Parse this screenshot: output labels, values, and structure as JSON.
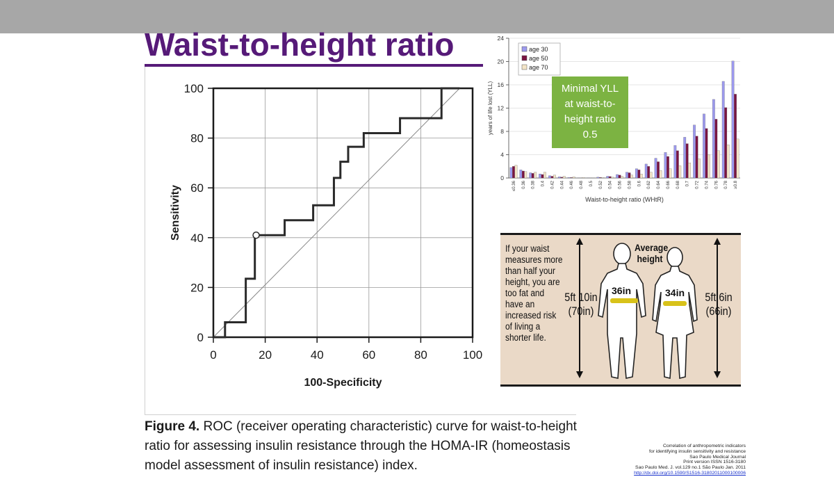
{
  "slide": {
    "title": "Waist-to-height ratio",
    "caption": {
      "label": "Figure 4.",
      "text": " ROC (receiver operating characteristic) curve for waist-to-height ratio for assessing insulin resistance through the HOMA-IR (homeostasis model assessment of insulin resistance) index."
    },
    "citation": {
      "lines": [
        "Correlation of anthropometric indicators",
        "for identifying insulin sensitivity and resistance",
        "Sao Paulo Medical Journal",
        "Print version ISSN 1516-3180",
        "Sao Paulo Med. J. vol.129 no.1 São Paulo Jan. 2011"
      ],
      "link": "http://dx.doi.org/10.1590/S1516-31802011000100006"
    },
    "waist_panel": {
      "text": "If your waist measures more than half your height, you are too fat and have an increased risk of living a shorter life.",
      "average_height": "Average height",
      "man_height": [
        "5ft 10in",
        "(70in)"
      ],
      "woman_height": [
        "5ft 6in",
        "(66in)"
      ],
      "man_waist": "36in",
      "woman_waist": "34in"
    }
  },
  "chart_data": [
    {
      "type": "line",
      "xlabel": "100-Specificity",
      "ylabel": "Sensitivity",
      "xlim": [
        0,
        100
      ],
      "ylim": [
        0,
        100
      ],
      "xticks": [
        "0",
        "20",
        "40",
        "60",
        "80",
        "100"
      ],
      "yticks": [
        "0",
        "20",
        "40",
        "60",
        "80",
        "100"
      ],
      "grid": true,
      "series": [
        {
          "x": [
            0,
            4.5,
            4.5,
            12.5,
            12.5,
            16,
            16,
            16.5,
            16.5,
            27.5,
            27.5,
            38.5,
            38.5,
            46.5,
            46.5,
            49,
            49,
            52,
            52,
            58,
            58,
            72,
            72,
            88,
            88,
            95
          ],
          "y": [
            0,
            0,
            6,
            6,
            23.5,
            23.5,
            41,
            41,
            41,
            41,
            47,
            47,
            53,
            53,
            64,
            64,
            70.5,
            70.5,
            76.5,
            76.5,
            82,
            82,
            88,
            88,
            100,
            100
          ]
        },
        {
          "x": [
            0,
            95
          ],
          "y": [
            0,
            100
          ]
        }
      ],
      "annotations": [
        {
          "x": 16.5,
          "y": 41,
          "marker": "open-circle"
        }
      ]
    },
    {
      "type": "bar",
      "ylabel": "years of life lost (YLL)",
      "xlabel": "Waist-to-height ratio (WHtR)",
      "ylim": [
        0,
        24
      ],
      "yticks": [
        "0",
        "4",
        "8",
        "12",
        "16",
        "20",
        "24"
      ],
      "categories": [
        "≤0.36",
        "0.36",
        "0.38",
        "0.4",
        "0.42",
        "0.44",
        "0.46",
        "0.48",
        "0.5",
        "0.52",
        "0.54",
        "0.56",
        "0.58",
        "0.6",
        "0.62",
        "0.64",
        "0.66",
        "0.68",
        "0.7",
        "0.72",
        "0.74",
        "0.76",
        "0.78",
        "≥0.8"
      ],
      "series": [
        {
          "name": "age 30",
          "color": "#9c99ee",
          "values": [
            1.8,
            1.4,
            0.9,
            0.7,
            0.4,
            0.2,
            0.1,
            0.05,
            0.05,
            0.15,
            0.3,
            0.6,
            1.0,
            1.6,
            2.4,
            3.4,
            4.4,
            5.6,
            7.0,
            9.1,
            11.0,
            13.5,
            16.6,
            20.1
          ]
        },
        {
          "name": "age 50",
          "color": "#7a1442",
          "values": [
            2.0,
            1.2,
            0.8,
            0.6,
            0.3,
            0.15,
            0.08,
            0.04,
            0.04,
            0.1,
            0.25,
            0.5,
            0.9,
            1.4,
            2.0,
            2.8,
            3.7,
            4.7,
            5.9,
            7.2,
            8.5,
            10.1,
            12.1,
            14.4
          ]
        },
        {
          "name": "age 70",
          "color": "#f3e4c7",
          "values": [
            2.2,
            1.1,
            1.0,
            1.0,
            0.5,
            0.3,
            0.2,
            0.1,
            0.05,
            0.08,
            0.15,
            0.3,
            0.5,
            0.7,
            1.0,
            1.3,
            1.6,
            2.1,
            2.6,
            3.3,
            4.0,
            4.7,
            5.7,
            6.7
          ]
        }
      ],
      "annotations": [
        {
          "text": "Minimal YLL at waist-to-height ratio 0.5",
          "background": "#7cb342",
          "color": "#ffffff"
        }
      ]
    }
  ]
}
